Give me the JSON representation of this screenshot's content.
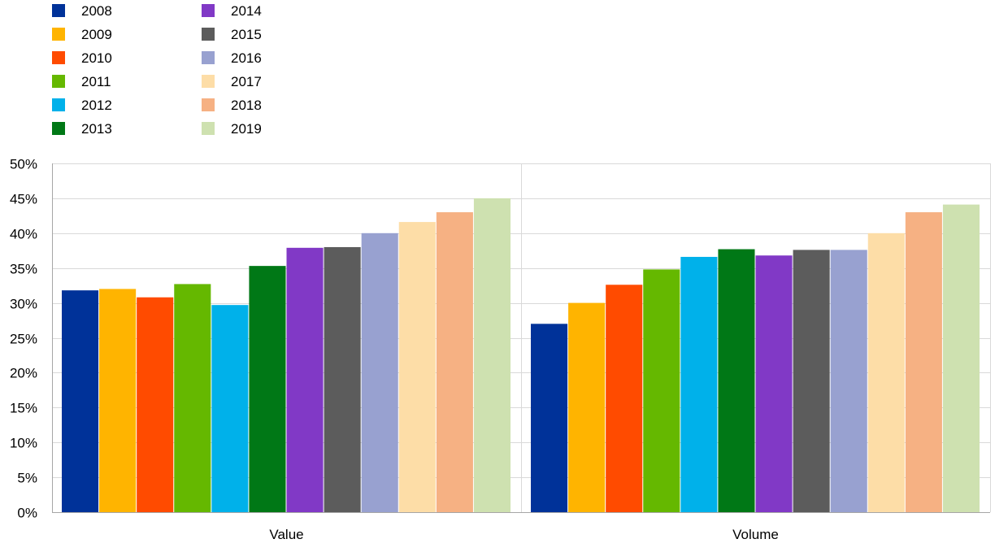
{
  "chart_data": {
    "type": "bar",
    "title": "",
    "xlabel": "",
    "ylabel": "",
    "categories": [
      "Value",
      "Volume"
    ],
    "ylim": [
      0,
      50
    ],
    "yticks": [
      0,
      5,
      10,
      15,
      20,
      25,
      30,
      35,
      40,
      45,
      50
    ],
    "ytick_suffix": "%",
    "grid": true,
    "legend_position": "top-left",
    "series": [
      {
        "name": "2008",
        "color": "#003299",
        "values": [
          31.8,
          27.0
        ]
      },
      {
        "name": "2009",
        "color": "#FFB400",
        "values": [
          32.0,
          30.0
        ]
      },
      {
        "name": "2010",
        "color": "#FF4B00",
        "values": [
          30.8,
          32.6
        ]
      },
      {
        "name": "2011",
        "color": "#65B800",
        "values": [
          32.7,
          34.8
        ]
      },
      {
        "name": "2012",
        "color": "#00B1EA",
        "values": [
          29.7,
          36.6
        ]
      },
      {
        "name": "2013",
        "color": "#007816",
        "values": [
          35.3,
          37.7
        ]
      },
      {
        "name": "2014",
        "color": "#8139C6",
        "values": [
          37.9,
          36.8
        ]
      },
      {
        "name": "2015",
        "color": "#5C5C5C",
        "values": [
          38.0,
          37.6
        ]
      },
      {
        "name": "2016",
        "color": "#98A1D0",
        "values": [
          40.0,
          37.6
        ]
      },
      {
        "name": "2017",
        "color": "#FDDDA7",
        "values": [
          41.6,
          40.0
        ]
      },
      {
        "name": "2018",
        "color": "#F6B183",
        "values": [
          43.0,
          43.0
        ]
      },
      {
        "name": "2019",
        "color": "#CEE1B0",
        "values": [
          45.0,
          44.1
        ]
      }
    ]
  }
}
